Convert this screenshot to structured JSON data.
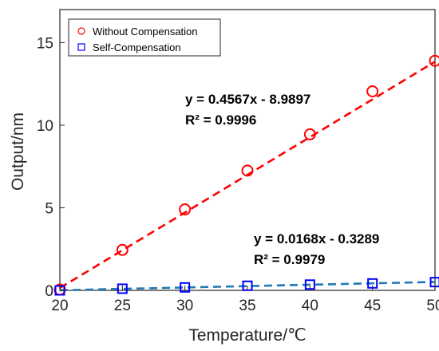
{
  "chart_data": {
    "type": "scatter",
    "xlabel": "Temperature/℃",
    "ylabel": "Output/nm",
    "xlim": [
      20,
      50
    ],
    "ylim": [
      0,
      17
    ],
    "xticks": [
      20,
      25,
      30,
      35,
      40,
      45,
      50
    ],
    "yticks": [
      0,
      5,
      10,
      15
    ],
    "xtick_labels": [
      "20",
      "25",
      "30",
      "35",
      "40",
      "45",
      "50"
    ],
    "ytick_labels": [
      "0",
      "5",
      "10",
      "15"
    ],
    "grid": false,
    "legend_position": "top-left",
    "series": [
      {
        "name": "Without Compensation",
        "marker": "circle",
        "color": "#ff0000",
        "x": [
          20,
          25,
          30,
          35,
          40,
          45,
          50
        ],
        "y": [
          0.05,
          2.45,
          4.9,
          7.25,
          9.45,
          12.05,
          13.9
        ],
        "fit": {
          "slope": 0.4567,
          "intercept": -8.9897,
          "line_color": "#ff0000"
        }
      },
      {
        "name": "Self-Compensation",
        "marker": "square",
        "color": "#0000ff",
        "x": [
          20,
          25,
          30,
          35,
          40,
          45,
          50
        ],
        "y": [
          0.0,
          0.1,
          0.18,
          0.28,
          0.35,
          0.42,
          0.5
        ],
        "fit": {
          "slope": 0.0168,
          "intercept": -0.3289,
          "line_color": "#1f77b4"
        }
      }
    ],
    "annotations": [
      {
        "eq": "y = 0.4567x - 8.9897",
        "r2": "R² = 0.9996"
      },
      {
        "eq": "y = 0.0168x - 0.3289",
        "r2": "R² = 0.9979"
      }
    ]
  }
}
